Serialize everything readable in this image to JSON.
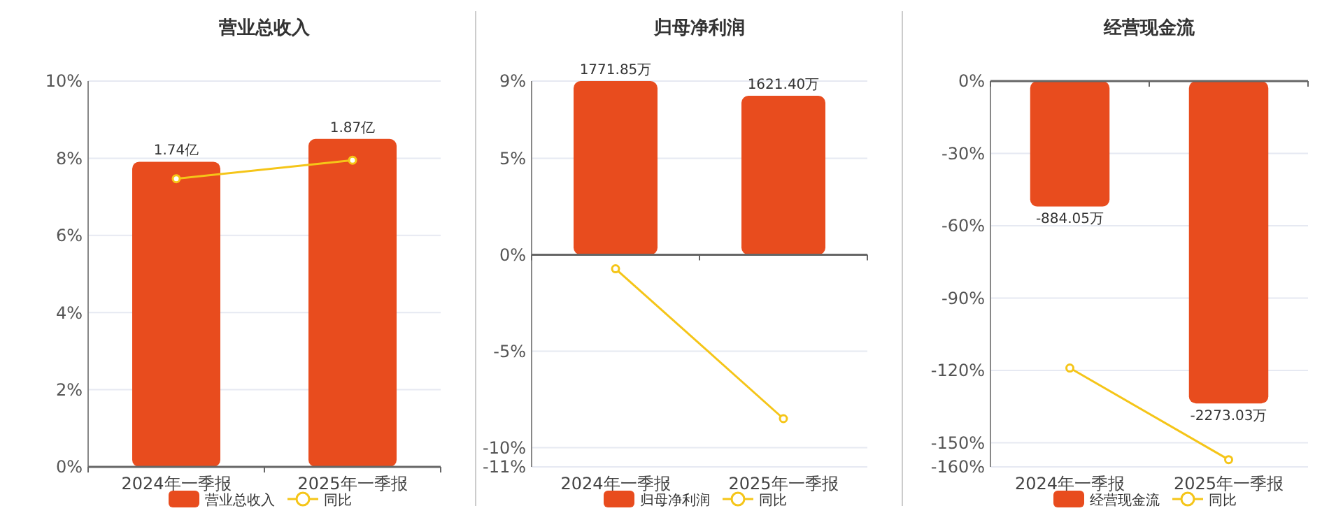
{
  "chart_data": [
    {
      "type": "bar",
      "title": "营业总收入",
      "categories": [
        "2024年一季报",
        "2025年一季报"
      ],
      "series": [
        {
          "name": "营业总收入",
          "color": "#e84c1e",
          "values": [
            1.74,
            1.87
          ],
          "axis": "y2",
          "value_labels": [
            "1.74亿",
            "1.87亿"
          ]
        },
        {
          "name": "同比",
          "type": "line",
          "color": "#f5c518",
          "values": [
            7.47,
            7.95
          ]
        }
      ],
      "ylim": [
        0,
        10
      ],
      "yticks": [
        {
          "value": 0,
          "label": "0%"
        },
        {
          "value": 2,
          "label": "2%"
        },
        {
          "value": 4,
          "label": "4%"
        },
        {
          "value": 6,
          "label": "6%"
        },
        {
          "value": 8,
          "label": "8%"
        },
        {
          "value": 10,
          "label": "10%"
        }
      ],
      "y2lim": [
        0,
        2.2
      ],
      "grid": "y",
      "legend": "bottom",
      "marker": "circle"
    },
    {
      "type": "bar",
      "title": "归母净利润",
      "categories": [
        "2024年一季报",
        "2025年一季报"
      ],
      "series": [
        {
          "name": "归母净利润",
          "color": "#e84c1e",
          "values": [
            1771.85,
            1621.4
          ],
          "axis": "y2",
          "value_labels": [
            "1771.85万",
            "1621.40万"
          ]
        },
        {
          "name": "同比",
          "type": "line",
          "color": "#f5c518",
          "values": [
            -0.73,
            -8.5
          ]
        }
      ],
      "ylim": [
        -11,
        9
      ],
      "yticks": [
        {
          "value": -11,
          "label": "-11%"
        },
        {
          "value": -10,
          "label": "-10%"
        },
        {
          "value": -5,
          "label": "-5%"
        },
        {
          "value": 0,
          "label": "0%"
        },
        {
          "value": 5,
          "label": "5%"
        },
        {
          "value": 9,
          "label": "9%"
        }
      ],
      "y2lim": [
        -2166,
        1772
      ],
      "grid": "y",
      "legend": "bottom",
      "marker": "circle"
    },
    {
      "type": "bar",
      "title": "经营现金流",
      "categories": [
        "2024年一季报",
        "2025年一季报"
      ],
      "series": [
        {
          "name": "经营现金流",
          "color": "#e84c1e",
          "values": [
            -884.05,
            -2273.03
          ],
          "axis": "y2",
          "value_labels": [
            "-884.05万",
            "-2273.03万"
          ]
        },
        {
          "name": "同比",
          "type": "line",
          "color": "#f5c518",
          "values": [
            -119,
            -157
          ]
        }
      ],
      "ylim": [
        -160,
        0
      ],
      "yticks": [
        {
          "value": -160,
          "label": "-160%"
        },
        {
          "value": -150,
          "label": "-150%"
        },
        {
          "value": -120,
          "label": "-120%"
        },
        {
          "value": -90,
          "label": "-90%"
        },
        {
          "value": -60,
          "label": "-60%"
        },
        {
          "value": -30,
          "label": "-30%"
        },
        {
          "value": 0,
          "label": "0%"
        }
      ],
      "y2lim": [
        -2720,
        0
      ],
      "grid": "y",
      "legend": "bottom",
      "marker": "circle"
    }
  ]
}
